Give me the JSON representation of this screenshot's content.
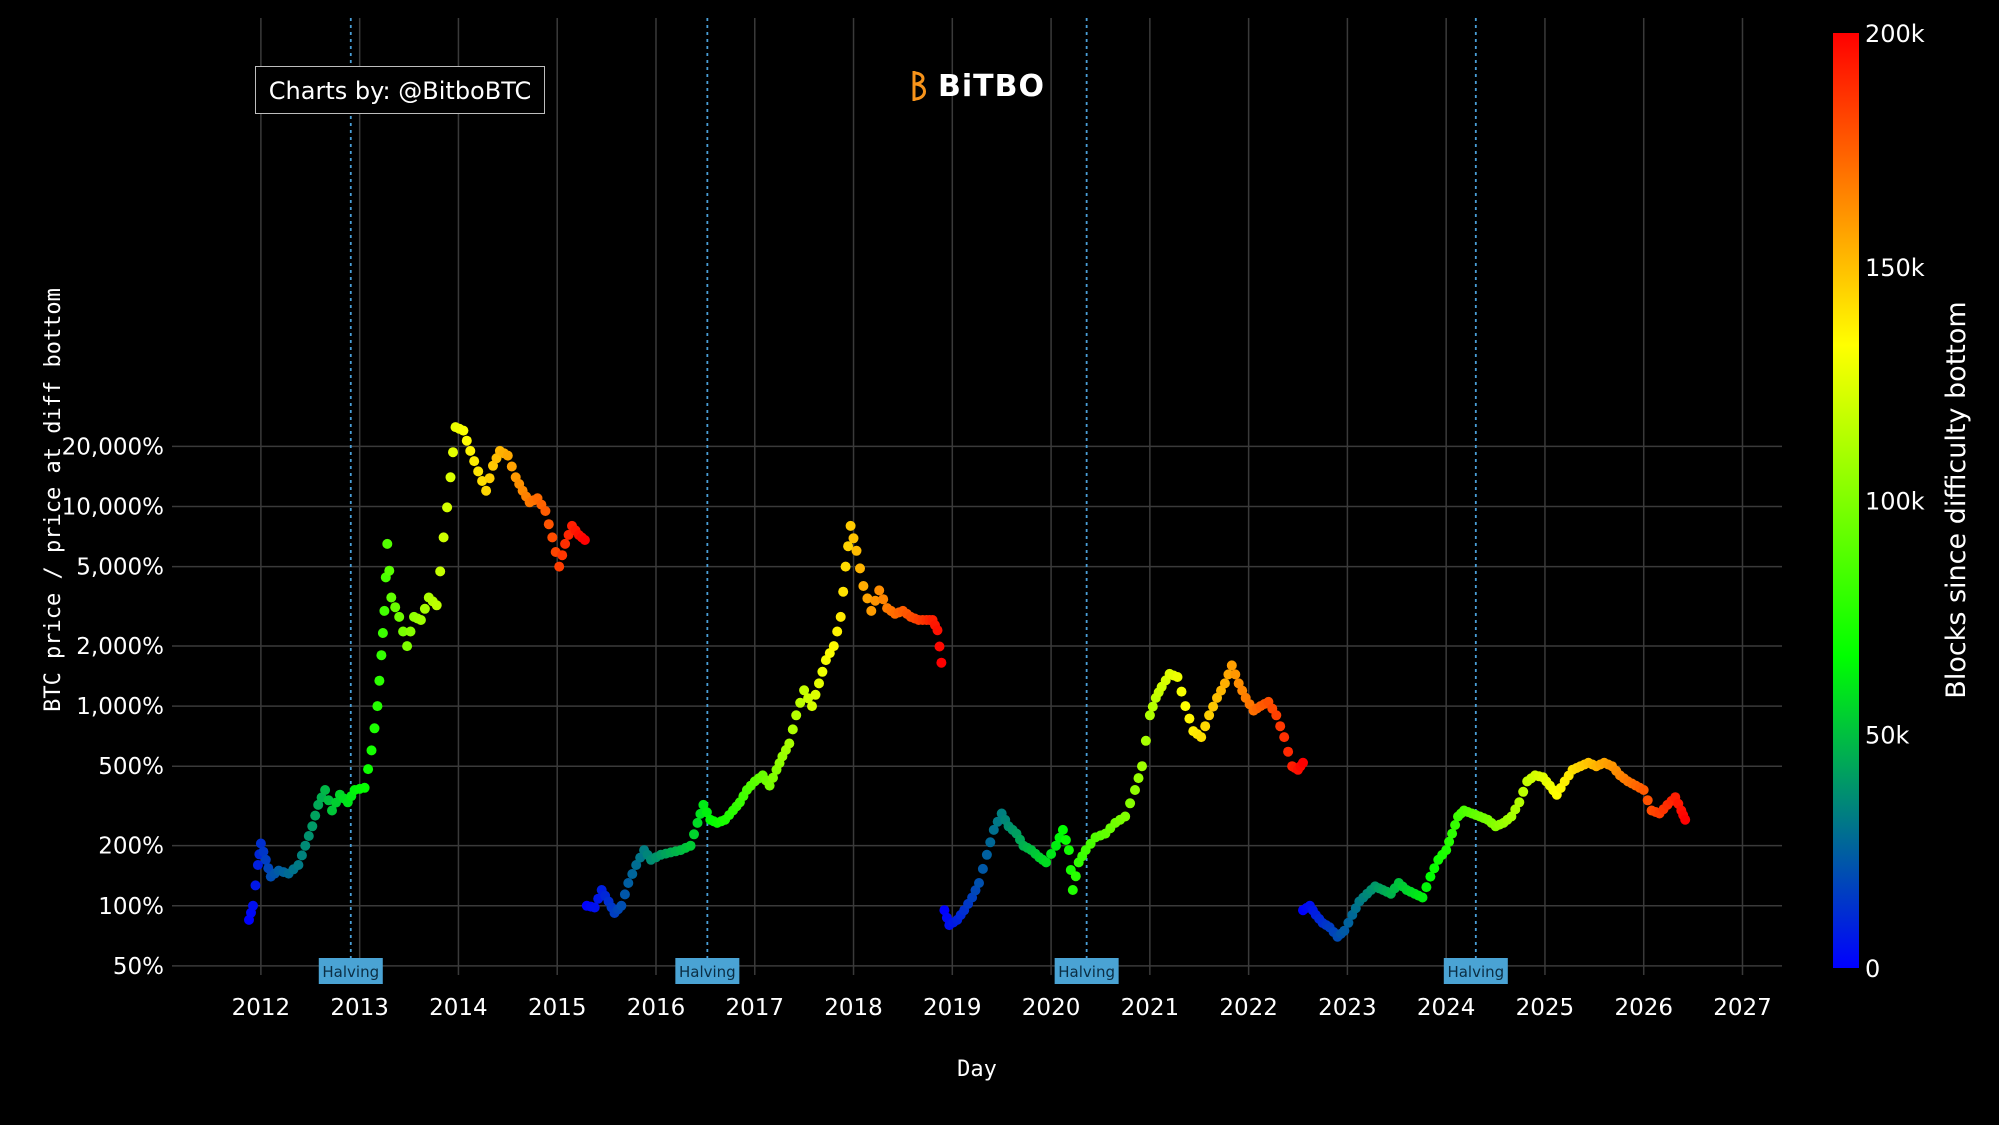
{
  "credit": "Charts by: @BitboBTC",
  "logo_text": "BiTBO",
  "colors": {
    "background": "#000000",
    "grid": "#3a3a3a",
    "halving_line": "#4a9fd8",
    "halving_label_bg": "#4aa3d4",
    "logo_accent": "#f7931a"
  },
  "chart_data": {
    "type": "scatter",
    "xlabel": "Day",
    "ylabel": "BTC price / price at diff bottom",
    "y_scale": "log",
    "ylim": [
      0.45,
      28000
    ],
    "xlim": [
      2011.1,
      2027.4
    ],
    "x_ticks": [
      "2012",
      "2013",
      "2014",
      "2015",
      "2016",
      "2017",
      "2018",
      "2019",
      "2020",
      "2021",
      "2022",
      "2023",
      "2024",
      "2025",
      "2026",
      "2027"
    ],
    "y_ticks": [
      {
        "value": 50,
        "label": "50%"
      },
      {
        "value": 100,
        "label": "100%"
      },
      {
        "value": 200,
        "label": "200%"
      },
      {
        "value": 500,
        "label": "500%"
      },
      {
        "value": 1000,
        "label": "1,000%"
      },
      {
        "value": 2000,
        "label": "2,000%"
      },
      {
        "value": 5000,
        "label": "5,000%"
      },
      {
        "value": 10000,
        "label": "10,000%"
      },
      {
        "value": 20000,
        "label": "20,000%"
      }
    ],
    "grid": true,
    "colorbar": {
      "title": "Blocks since difficulty bottom",
      "range": [
        0,
        200000
      ],
      "ticks": [
        {
          "value": 0,
          "label": "0"
        },
        {
          "value": 50000,
          "label": "50k"
        },
        {
          "value": 100000,
          "label": "100k"
        },
        {
          "value": 150000,
          "label": "150k"
        },
        {
          "value": 200000,
          "label": "200k"
        }
      ],
      "stops": [
        "#0000ff",
        "#00ff00",
        "#ffff00",
        "#ff0000"
      ]
    },
    "halvings": [
      {
        "x": 2012.91,
        "label": "Halving"
      },
      {
        "x": 2016.52,
        "label": "Halving"
      },
      {
        "x": 2020.36,
        "label": "Halving"
      },
      {
        "x": 2024.3,
        "label": "Halving"
      }
    ],
    "series": [
      {
        "points": [
          [
            2011.88,
            85
          ],
          [
            2011.92,
            100
          ],
          [
            2011.97,
            160
          ],
          [
            2012.0,
            205
          ],
          [
            2012.05,
            170
          ],
          [
            2012.1,
            140
          ],
          [
            2012.18,
            150
          ],
          [
            2012.28,
            145
          ],
          [
            2012.38,
            160
          ],
          [
            2012.45,
            200
          ],
          [
            2012.52,
            250
          ],
          [
            2012.58,
            320
          ],
          [
            2012.65,
            380
          ],
          [
            2012.72,
            300
          ],
          [
            2012.8,
            360
          ],
          [
            2012.88,
            330
          ],
          [
            2012.95,
            380
          ],
          [
            2013.05,
            390
          ],
          [
            2013.12,
            600
          ],
          [
            2013.18,
            1000
          ],
          [
            2013.22,
            1800
          ],
          [
            2013.25,
            3000
          ],
          [
            2013.28,
            6500
          ],
          [
            2013.32,
            3500
          ],
          [
            2013.4,
            2800
          ],
          [
            2013.48,
            2000
          ],
          [
            2013.55,
            2800
          ],
          [
            2013.62,
            2700
          ],
          [
            2013.7,
            3500
          ],
          [
            2013.78,
            3200
          ],
          [
            2013.85,
            7000
          ],
          [
            2013.92,
            14000
          ],
          [
            2013.97,
            25000
          ],
          [
            2014.05,
            24000
          ],
          [
            2014.12,
            19000
          ],
          [
            2014.2,
            15000
          ],
          [
            2014.28,
            12000
          ],
          [
            2014.35,
            16000
          ],
          [
            2014.42,
            19000
          ],
          [
            2014.5,
            18000
          ],
          [
            2014.58,
            14000
          ],
          [
            2014.65,
            12000
          ],
          [
            2014.72,
            10500
          ],
          [
            2014.8,
            11000
          ],
          [
            2014.88,
            9500
          ],
          [
            2014.95,
            7000
          ],
          [
            2015.02,
            5000
          ],
          [
            2015.08,
            6500
          ],
          [
            2015.15,
            8000
          ],
          [
            2015.22,
            7200
          ],
          [
            2015.28,
            6800
          ]
        ]
      },
      {
        "points": [
          [
            2015.3,
            100
          ],
          [
            2015.38,
            98
          ],
          [
            2015.45,
            120
          ],
          [
            2015.52,
            105
          ],
          [
            2015.58,
            92
          ],
          [
            2015.65,
            100
          ],
          [
            2015.72,
            130
          ],
          [
            2015.8,
            160
          ],
          [
            2015.88,
            190
          ],
          [
            2015.95,
            170
          ],
          [
            2016.05,
            180
          ],
          [
            2016.15,
            185
          ],
          [
            2016.25,
            190
          ],
          [
            2016.35,
            200
          ],
          [
            2016.42,
            260
          ],
          [
            2016.48,
            320
          ],
          [
            2016.55,
            270
          ],
          [
            2016.62,
            260
          ],
          [
            2016.7,
            270
          ],
          [
            2016.78,
            300
          ],
          [
            2016.85,
            330
          ],
          [
            2016.92,
            380
          ],
          [
            2017.0,
            420
          ],
          [
            2017.08,
            450
          ],
          [
            2017.15,
            400
          ],
          [
            2017.22,
            480
          ],
          [
            2017.28,
            560
          ],
          [
            2017.35,
            650
          ],
          [
            2017.42,
            900
          ],
          [
            2017.5,
            1200
          ],
          [
            2017.58,
            1000
          ],
          [
            2017.65,
            1300
          ],
          [
            2017.72,
            1700
          ],
          [
            2017.8,
            2000
          ],
          [
            2017.87,
            2800
          ],
          [
            2017.92,
            5000
          ],
          [
            2017.97,
            8000
          ],
          [
            2018.03,
            6000
          ],
          [
            2018.1,
            4000
          ],
          [
            2018.18,
            3000
          ],
          [
            2018.26,
            3800
          ],
          [
            2018.34,
            3100
          ],
          [
            2018.42,
            2900
          ],
          [
            2018.5,
            3000
          ],
          [
            2018.58,
            2800
          ],
          [
            2018.66,
            2700
          ],
          [
            2018.74,
            2700
          ],
          [
            2018.8,
            2700
          ],
          [
            2018.85,
            2400
          ],
          [
            2018.89,
            1650
          ]
        ]
      },
      {
        "points": [
          [
            2018.92,
            95
          ],
          [
            2018.97,
            80
          ],
          [
            2019.05,
            85
          ],
          [
            2019.12,
            95
          ],
          [
            2019.2,
            110
          ],
          [
            2019.27,
            130
          ],
          [
            2019.35,
            180
          ],
          [
            2019.42,
            240
          ],
          [
            2019.5,
            290
          ],
          [
            2019.57,
            250
          ],
          [
            2019.65,
            230
          ],
          [
            2019.72,
            200
          ],
          [
            2019.8,
            190
          ],
          [
            2019.88,
            175
          ],
          [
            2019.95,
            165
          ],
          [
            2020.05,
            200
          ],
          [
            2020.12,
            240
          ],
          [
            2020.18,
            190
          ],
          [
            2020.22,
            120
          ],
          [
            2020.28,
            165
          ],
          [
            2020.35,
            190
          ],
          [
            2020.45,
            220
          ],
          [
            2020.55,
            230
          ],
          [
            2020.65,
            260
          ],
          [
            2020.75,
            280
          ],
          [
            2020.85,
            380
          ],
          [
            2020.92,
            500
          ],
          [
            2021.0,
            900
          ],
          [
            2021.06,
            1100
          ],
          [
            2021.12,
            1250
          ],
          [
            2021.2,
            1450
          ],
          [
            2021.28,
            1400
          ],
          [
            2021.36,
            1000
          ],
          [
            2021.44,
            750
          ],
          [
            2021.52,
            700
          ],
          [
            2021.6,
            900
          ],
          [
            2021.68,
            1100
          ],
          [
            2021.76,
            1300
          ],
          [
            2021.83,
            1600
          ],
          [
            2021.9,
            1300
          ],
          [
            2021.97,
            1100
          ],
          [
            2022.05,
            950
          ],
          [
            2022.12,
            1000
          ],
          [
            2022.2,
            1050
          ],
          [
            2022.28,
            900
          ],
          [
            2022.36,
            700
          ],
          [
            2022.44,
            500
          ],
          [
            2022.5,
            480
          ],
          [
            2022.55,
            520
          ]
        ]
      },
      {
        "points": [
          [
            2022.55,
            95
          ],
          [
            2022.62,
            100
          ],
          [
            2022.68,
            90
          ],
          [
            2022.75,
            82
          ],
          [
            2022.82,
            78
          ],
          [
            2022.9,
            70
          ],
          [
            2022.97,
            75
          ],
          [
            2023.05,
            90
          ],
          [
            2023.12,
            105
          ],
          [
            2023.2,
            115
          ],
          [
            2023.28,
            125
          ],
          [
            2023.36,
            120
          ],
          [
            2023.44,
            115
          ],
          [
            2023.52,
            130
          ],
          [
            2023.6,
            120
          ],
          [
            2023.68,
            115
          ],
          [
            2023.76,
            110
          ],
          [
            2023.84,
            140
          ],
          [
            2023.92,
            170
          ],
          [
            2024.0,
            190
          ],
          [
            2024.06,
            230
          ],
          [
            2024.12,
            280
          ],
          [
            2024.18,
            300
          ],
          [
            2024.26,
            290
          ],
          [
            2024.34,
            280
          ],
          [
            2024.42,
            270
          ],
          [
            2024.5,
            250
          ],
          [
            2024.58,
            260
          ],
          [
            2024.66,
            280
          ],
          [
            2024.74,
            330
          ],
          [
            2024.82,
            420
          ],
          [
            2024.9,
            450
          ],
          [
            2024.98,
            440
          ],
          [
            2025.05,
            400
          ],
          [
            2025.12,
            360
          ],
          [
            2025.2,
            420
          ],
          [
            2025.28,
            480
          ],
          [
            2025.36,
            500
          ],
          [
            2025.44,
            520
          ],
          [
            2025.52,
            500
          ],
          [
            2025.6,
            520
          ],
          [
            2025.68,
            500
          ],
          [
            2025.76,
            450
          ],
          [
            2025.84,
            420
          ],
          [
            2025.92,
            400
          ],
          [
            2026.0,
            380
          ],
          [
            2026.08,
            300
          ],
          [
            2026.16,
            290
          ],
          [
            2026.24,
            320
          ],
          [
            2026.32,
            350
          ],
          [
            2026.38,
            300
          ],
          [
            2026.42,
            270
          ]
        ]
      }
    ]
  }
}
